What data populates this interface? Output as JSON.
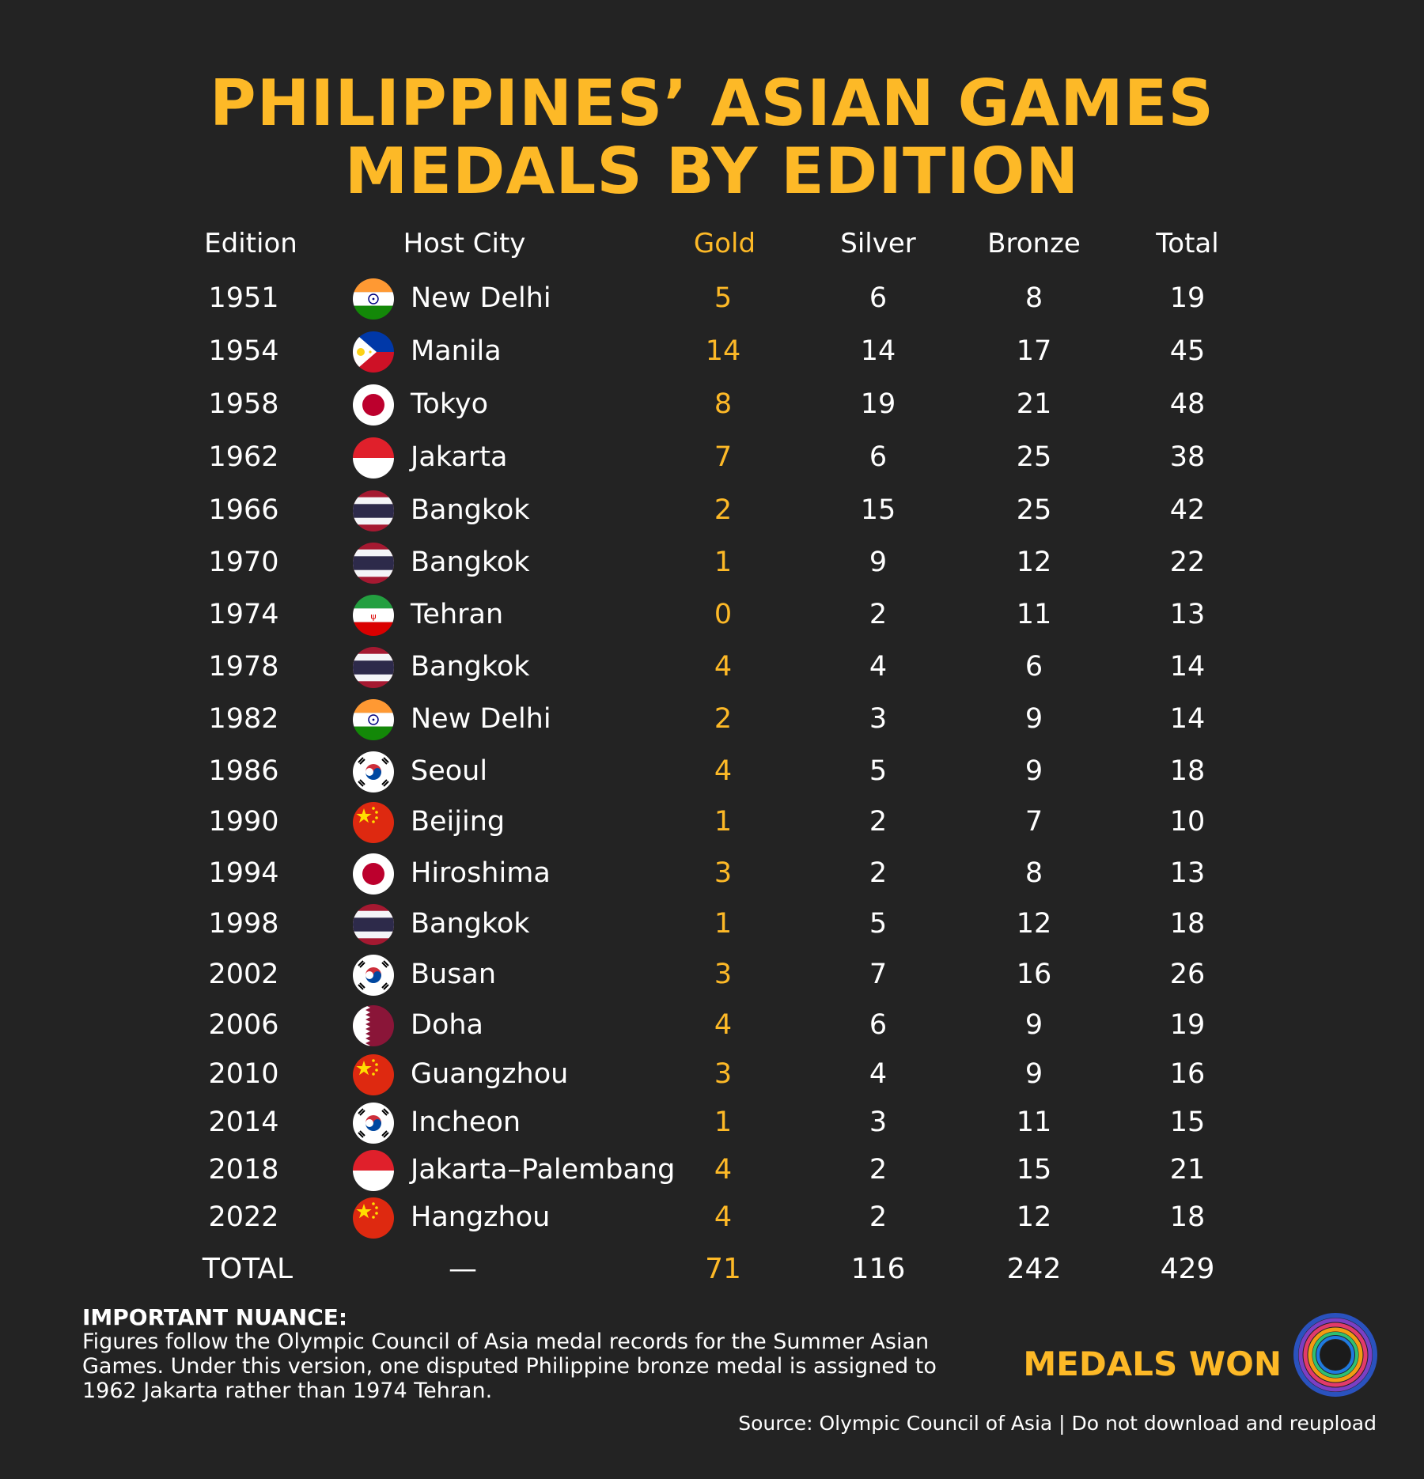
{
  "title": {
    "line1": "PHILIPPINES’ ASIAN GAMES",
    "line2": "MEDALS BY EDITION"
  },
  "headers": {
    "edition": "Edition",
    "host_city": "Host City",
    "gold": "Gold",
    "silver": "Silver",
    "bronze": "Bronze",
    "total": "Total"
  },
  "colors": {
    "accent_gold": "#fdb927",
    "background": "#232323"
  },
  "rows": [
    {
      "edition": "1951",
      "city": "New Delhi",
      "flag": "india-flag-icon",
      "gold": "5",
      "silver": "6",
      "bronze": "8",
      "total": "19"
    },
    {
      "edition": "1954",
      "city": "Manila",
      "flag": "philippines-flag-icon",
      "gold": "14",
      "silver": "14",
      "bronze": "17",
      "total": "45"
    },
    {
      "edition": "1958",
      "city": "Tokyo",
      "flag": "japan-flag-icon",
      "gold": "8",
      "silver": "19",
      "bronze": "21",
      "total": "48"
    },
    {
      "edition": "1962",
      "city": "Jakarta",
      "flag": "indonesia-flag-icon",
      "gold": "7",
      "silver": "6",
      "bronze": "25",
      "total": "38"
    },
    {
      "edition": "1966",
      "city": "Bangkok",
      "flag": "thailand-flag-icon",
      "gold": "2",
      "silver": "15",
      "bronze": "25",
      "total": "42"
    },
    {
      "edition": "1970",
      "city": "Bangkok",
      "flag": "thailand-flag-icon",
      "gold": "1",
      "silver": "9",
      "bronze": "12",
      "total": "22"
    },
    {
      "edition": "1974",
      "city": "Tehran",
      "flag": "iran-flag-icon",
      "gold": "0",
      "silver": "2",
      "bronze": "11",
      "total": "13"
    },
    {
      "edition": "1978",
      "city": "Bangkok",
      "flag": "thailand-flag-icon",
      "gold": "4",
      "silver": "4",
      "bronze": "6",
      "total": "14"
    },
    {
      "edition": "1982",
      "city": "New Delhi",
      "flag": "india-flag-icon",
      "gold": "2",
      "silver": "3",
      "bronze": "9",
      "total": "14"
    },
    {
      "edition": "1986",
      "city": "Seoul",
      "flag": "south-korea-flag-icon",
      "gold": "4",
      "silver": "5",
      "bronze": "9",
      "total": "18"
    },
    {
      "edition": "1990",
      "city": "Beijing",
      "flag": "china-flag-icon",
      "gold": "1",
      "silver": "2",
      "bronze": "7",
      "total": "10"
    },
    {
      "edition": "1994",
      "city": "Hiroshima",
      "flag": "japan-flag-icon",
      "gold": "3",
      "silver": "2",
      "bronze": "8",
      "total": "13"
    },
    {
      "edition": "1998",
      "city": "Bangkok",
      "flag": "thailand-flag-icon",
      "gold": "1",
      "silver": "5",
      "bronze": "12",
      "total": "18"
    },
    {
      "edition": "2002",
      "city": "Busan",
      "flag": "south-korea-flag-icon",
      "gold": "3",
      "silver": "7",
      "bronze": "16",
      "total": "26"
    },
    {
      "edition": "2006",
      "city": "Doha",
      "flag": "qatar-flag-icon",
      "gold": "4",
      "silver": "6",
      "bronze": "9",
      "total": "19"
    },
    {
      "edition": "2010",
      "city": "Guangzhou",
      "flag": "china-flag-icon",
      "gold": "3",
      "silver": "4",
      "bronze": "9",
      "total": "16"
    },
    {
      "edition": "2014",
      "city": "Incheon",
      "flag": "south-korea-flag-icon",
      "gold": "1",
      "silver": "3",
      "bronze": "11",
      "total": "15"
    },
    {
      "edition": "2018",
      "city": "Jakarta–Palembang",
      "flag": "indonesia-flag-icon",
      "gold": "4",
      "silver": "2",
      "bronze": "15",
      "total": "21"
    },
    {
      "edition": "2022",
      "city": "Hangzhou",
      "flag": "china-flag-icon",
      "gold": "4",
      "silver": "2",
      "bronze": "12",
      "total": "18"
    }
  ],
  "totals": {
    "label": "TOTAL",
    "city": "—",
    "gold": "71",
    "silver": "116",
    "bronze": "242",
    "total": "429"
  },
  "nuance": {
    "title": "IMPORTANT NUANCE:",
    "line1": "Figures follow the Olympic Council of Asia medal records for the Summer Asian",
    "line2": "Games. Under this version, one disputed Philippine bronze medal is assigned to",
    "line3": "1962 Jakarta rather than 1974 Tehran."
  },
  "brand": {
    "text": "MEDALS WON",
    "logo_icon": "rainbow-ring-logo-icon"
  },
  "source": {
    "text": "Source: Olympic Council of Asia  |  Do not download and reupload"
  }
}
